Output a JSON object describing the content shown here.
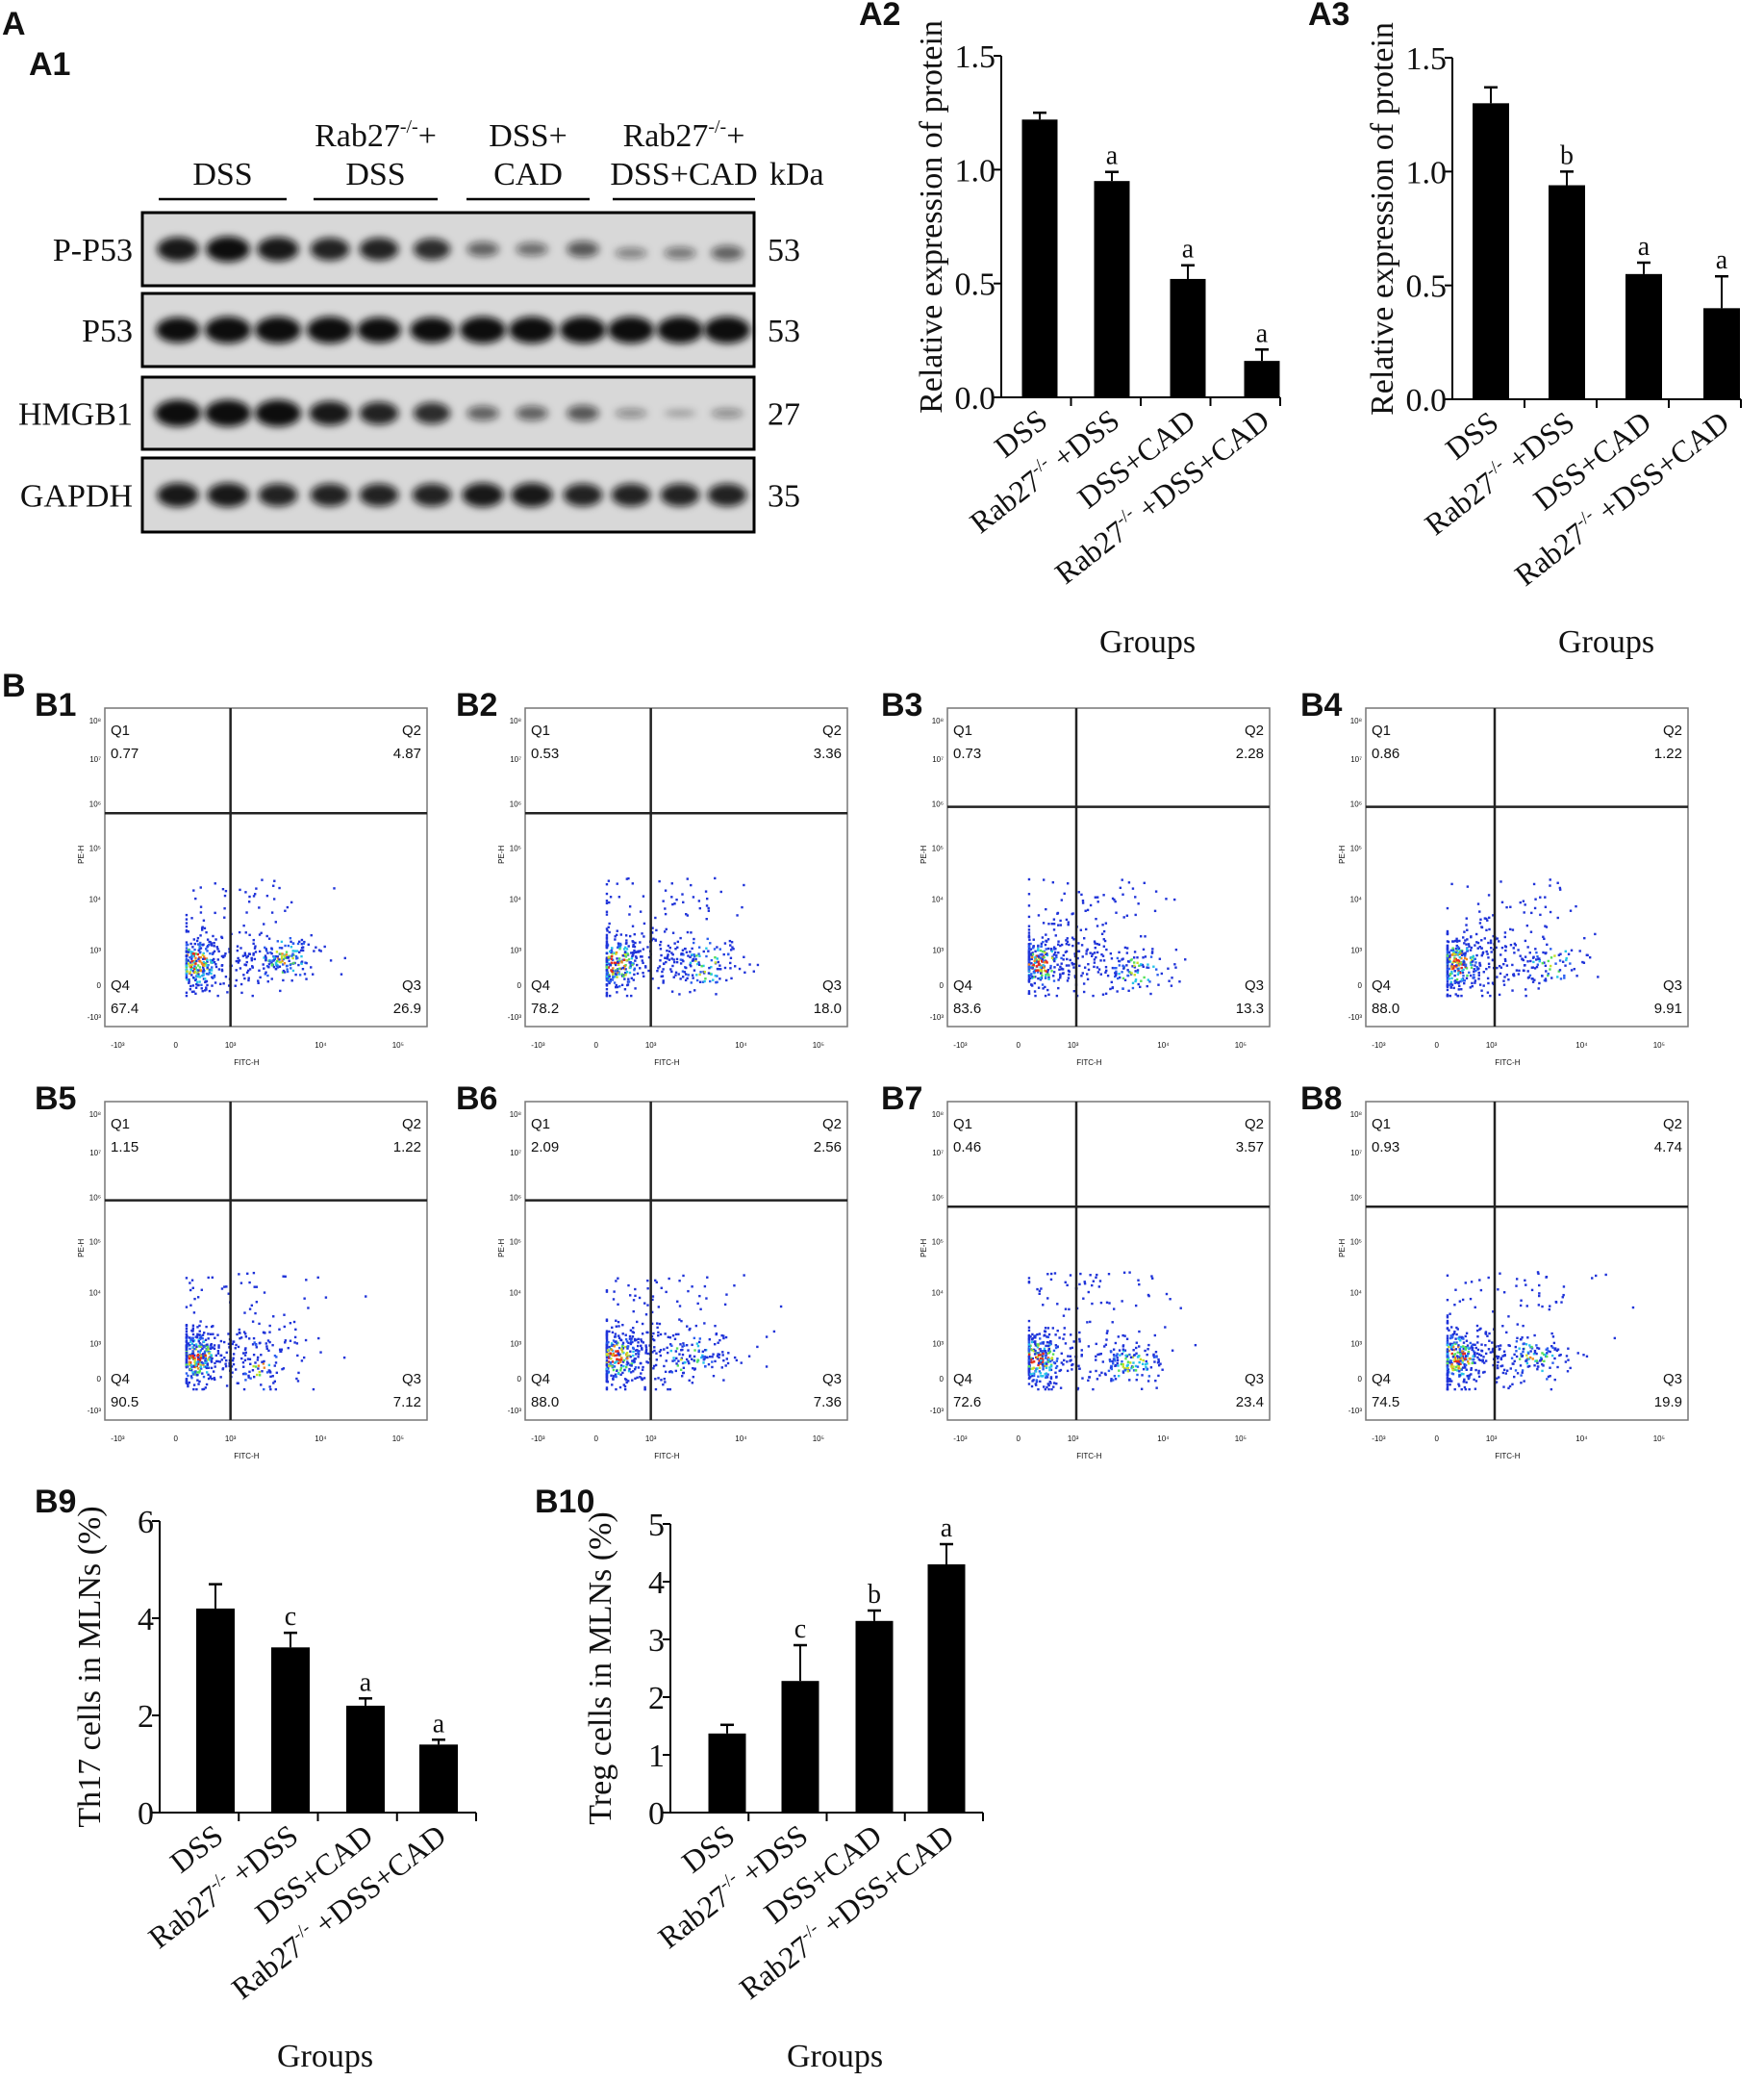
{
  "panel_labels": {
    "A": "A",
    "A1": "A1",
    "A2": "A2",
    "A3": "A3",
    "B": "B"
  },
  "blot": {
    "groups": [
      "DSS",
      "Rab27-/-+ DSS",
      "DSS+ CAD",
      "Rab27-/-+ DSS+CAD"
    ],
    "group_lines": [
      [
        "DSS"
      ],
      [
        "Rab27",
        "DSS"
      ],
      [
        "DSS+",
        "CAD"
      ],
      [
        "Rab27",
        "DSS+CAD"
      ]
    ],
    "unit": "kDa",
    "rows": [
      {
        "name": "P-P53",
        "kda": "53"
      },
      {
        "name": "P53",
        "kda": "53"
      },
      {
        "name": "HMGB1",
        "kda": "27"
      },
      {
        "name": "GAPDH",
        "kda": "35"
      }
    ]
  },
  "chart_data": [
    {
      "id": "A2",
      "type": "bar",
      "categories": [
        "DSS",
        "Rab27-/- +DSS",
        "DSS+CAD",
        "Rab27-/- +DSS+CAD"
      ],
      "values": [
        1.22,
        0.95,
        0.52,
        0.16
      ],
      "errors": [
        0.03,
        0.04,
        0.06,
        0.05
      ],
      "annotations": [
        "",
        "a",
        "a",
        "a"
      ],
      "ylabel": "Relative expression of protein",
      "xlabel": "Groups",
      "ylim": [
        0,
        1.5
      ],
      "yticks": [
        "0.0",
        "0.5",
        "1.0",
        "1.5"
      ],
      "ytick_values": [
        0,
        0.5,
        1.0,
        1.5
      ],
      "bar_color": "#000000"
    },
    {
      "id": "A3",
      "type": "bar",
      "categories": [
        "DSS",
        "Rab27-/- +DSS",
        "DSS+CAD",
        "Rab27-/- +DSS+CAD"
      ],
      "values": [
        1.3,
        0.94,
        0.55,
        0.4
      ],
      "errors": [
        0.07,
        0.06,
        0.05,
        0.14
      ],
      "annotations": [
        "",
        "b",
        "a",
        "a"
      ],
      "ylabel": "Relative expression of protein",
      "xlabel": "Groups",
      "ylim": [
        0,
        1.5
      ],
      "yticks": [
        "0.0",
        "0.5",
        "1.0",
        "1.5"
      ],
      "ytick_values": [
        0,
        0.5,
        1.0,
        1.5
      ],
      "bar_color": "#000000"
    },
    {
      "id": "B9",
      "type": "bar",
      "categories": [
        "DSS",
        "Rab27-/- +DSS",
        "DSS+CAD",
        "Rab27-/- +DSS+CAD"
      ],
      "values": [
        4.2,
        3.4,
        2.2,
        1.4
      ],
      "errors": [
        0.5,
        0.3,
        0.15,
        0.1
      ],
      "annotations": [
        "",
        "c",
        "a",
        "a"
      ],
      "ylabel": "Th17 cells in MLNs (%)",
      "xlabel": "Groups",
      "ylim": [
        0,
        6
      ],
      "yticks": [
        "0",
        "2",
        "4",
        "6"
      ],
      "ytick_values": [
        0,
        2,
        4,
        6
      ],
      "bar_color": "#000000"
    },
    {
      "id": "B10",
      "type": "bar",
      "categories": [
        "DSS",
        "Rab27-/- +DSS",
        "DSS+CAD",
        "Rab27-/- +DSS+CAD"
      ],
      "values": [
        1.37,
        2.28,
        3.32,
        4.3
      ],
      "errors": [
        0.15,
        0.62,
        0.18,
        0.35
      ],
      "annotations": [
        "",
        "c",
        "b",
        "a"
      ],
      "ylabel": "Treg cells in MLNs (%)",
      "xlabel": "Groups",
      "ylim": [
        0,
        5
      ],
      "yticks": [
        "0",
        "1",
        "2",
        "3",
        "4",
        "5"
      ],
      "ytick_values": [
        0,
        1,
        2,
        3,
        4,
        5
      ],
      "bar_color": "#000000"
    }
  ],
  "flow": {
    "xlabel": "FITC-H",
    "ylabel": "PE-H",
    "xticks": [
      "-10³",
      "0",
      "10³",
      "10⁴",
      "10⁵"
    ],
    "yticks": [
      "-10³",
      "0",
      "10³",
      "10⁴",
      "10⁵",
      "10⁶",
      "10⁷",
      "10⁸"
    ],
    "quadrant_names": [
      "Q1",
      "Q2",
      "Q3",
      "Q4"
    ],
    "plots": [
      {
        "id": "B1",
        "Q1": "0.77",
        "Q2": "4.87",
        "Q3": "26.9",
        "Q4": "67.4"
      },
      {
        "id": "B2",
        "Q1": "0.53",
        "Q2": "3.36",
        "Q3": "18.0",
        "Q4": "78.2"
      },
      {
        "id": "B3",
        "Q1": "0.73",
        "Q2": "2.28",
        "Q3": "13.3",
        "Q4": "83.6"
      },
      {
        "id": "B4",
        "Q1": "0.86",
        "Q2": "1.22",
        "Q3": "9.91",
        "Q4": "88.0"
      },
      {
        "id": "B5",
        "Q1": "1.15",
        "Q2": "1.22",
        "Q3": "7.12",
        "Q4": "90.5"
      },
      {
        "id": "B6",
        "Q1": "2.09",
        "Q2": "2.56",
        "Q3": "7.36",
        "Q4": "88.0"
      },
      {
        "id": "B7",
        "Q1": "0.46",
        "Q2": "3.57",
        "Q3": "23.4",
        "Q4": "72.6"
      },
      {
        "id": "B8",
        "Q1": "0.93",
        "Q2": "4.74",
        "Q3": "19.9",
        "Q4": "74.5"
      }
    ]
  }
}
